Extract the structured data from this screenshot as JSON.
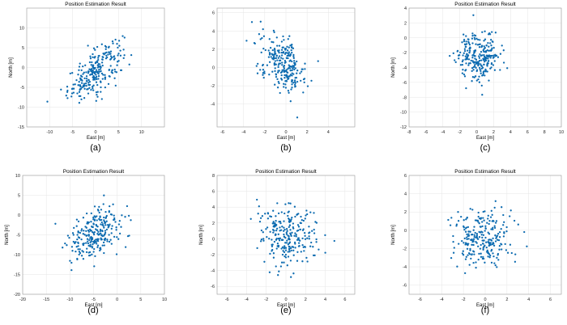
{
  "chart_data": [
    {
      "panel": "(a)",
      "type": "scatter",
      "title": "Position Estimation Result",
      "xlabel": "East [m]",
      "ylabel": "North [m]",
      "xlim": [
        -15,
        15
      ],
      "ylim": [
        -15,
        15
      ],
      "xticks": [
        -10,
        -5,
        0,
        5,
        10
      ],
      "yticks": [
        -15,
        -10,
        -5,
        0,
        5,
        10
      ],
      "grid": true,
      "color": "#0c6bb0",
      "series": [
        {
          "count": 250,
          "center": [
            0,
            -1
          ],
          "spread": [
            3.0,
            3.6
          ],
          "correlation": 0.68
        }
      ]
    },
    {
      "panel": "(b)",
      "type": "scatter",
      "title": "",
      "xlabel": "East [m]",
      "ylabel": "",
      "xlim": [
        -6.5,
        6.5
      ],
      "ylim": [
        -6.5,
        6.5
      ],
      "xticks": [
        -6,
        -4,
        -2,
        0,
        2,
        4
      ],
      "yticks": [
        -4,
        -2,
        0,
        2,
        4,
        6
      ],
      "grid": true,
      "color": "#0c6bb0",
      "series": [
        {
          "count": 250,
          "center": [
            -0.3,
            0.5
          ],
          "spread": [
            1.1,
            1.6
          ],
          "correlation": -0.45
        }
      ]
    },
    {
      "panel": "(c)",
      "type": "scatter",
      "title": "Position Estimation Result",
      "xlabel": "East [m]",
      "ylabel": "North [m]",
      "xlim": [
        -8,
        10
      ],
      "ylim": [
        -12,
        4
      ],
      "xticks": [
        -8,
        -6,
        -4,
        -2,
        0,
        2,
        4,
        6,
        8,
        10
      ],
      "yticks": [
        -12,
        -10,
        -8,
        -6,
        -4,
        -2,
        0,
        2,
        4
      ],
      "grid": true,
      "color": "#0c6bb0",
      "series": [
        {
          "count": 250,
          "center": [
            0.3,
            -2.5
          ],
          "spread": [
            1.3,
            1.6
          ],
          "correlation": 0.0
        }
      ]
    },
    {
      "panel": "(d)",
      "type": "scatter",
      "title": "Position Estimation Result",
      "xlabel": "East [m]",
      "ylabel": "North [m]",
      "xlim": [
        -20,
        10
      ],
      "ylim": [
        -20,
        10
      ],
      "xticks": [
        -20,
        -15,
        -10,
        -5,
        0,
        5,
        10
      ],
      "yticks": [
        -20,
        -15,
        -10,
        -5,
        0,
        5,
        10
      ],
      "grid": true,
      "color": "#0c6bb0",
      "series": [
        {
          "count": 250,
          "center": [
            -4.5,
            -4.5
          ],
          "spread": [
            3.0,
            3.6
          ],
          "correlation": 0.45
        }
      ]
    },
    {
      "panel": "(e)",
      "type": "scatter",
      "title": "Position Estimation Result",
      "xlabel": "East [m]",
      "ylabel": "North [m]",
      "xlim": [
        -7,
        7
      ],
      "ylim": [
        -7,
        8
      ],
      "xticks": [
        -6,
        -4,
        -2,
        0,
        2,
        4,
        6
      ],
      "yticks": [
        -6,
        -4,
        -2,
        0,
        2,
        4,
        6,
        8
      ],
      "grid": true,
      "color": "#0c6bb0",
      "series": [
        {
          "count": 250,
          "center": [
            0.2,
            0.5
          ],
          "spread": [
            1.4,
            1.9
          ],
          "correlation": 0.0
        }
      ]
    },
    {
      "panel": "(f)",
      "type": "scatter",
      "title": "Position Estimation Result",
      "xlabel": "East [m]",
      "ylabel": "North [m]",
      "xlim": [
        -7,
        7
      ],
      "ylim": [
        -7,
        6
      ],
      "xticks": [
        -6,
        -4,
        -2,
        0,
        2,
        4,
        6
      ],
      "yticks": [
        -6,
        -4,
        -2,
        0,
        2,
        4,
        6
      ],
      "grid": true,
      "color": "#0c6bb0",
      "series": [
        {
          "count": 250,
          "center": [
            -0.3,
            -0.8
          ],
          "spread": [
            1.3,
            1.7
          ],
          "correlation": 0.0
        }
      ]
    }
  ]
}
